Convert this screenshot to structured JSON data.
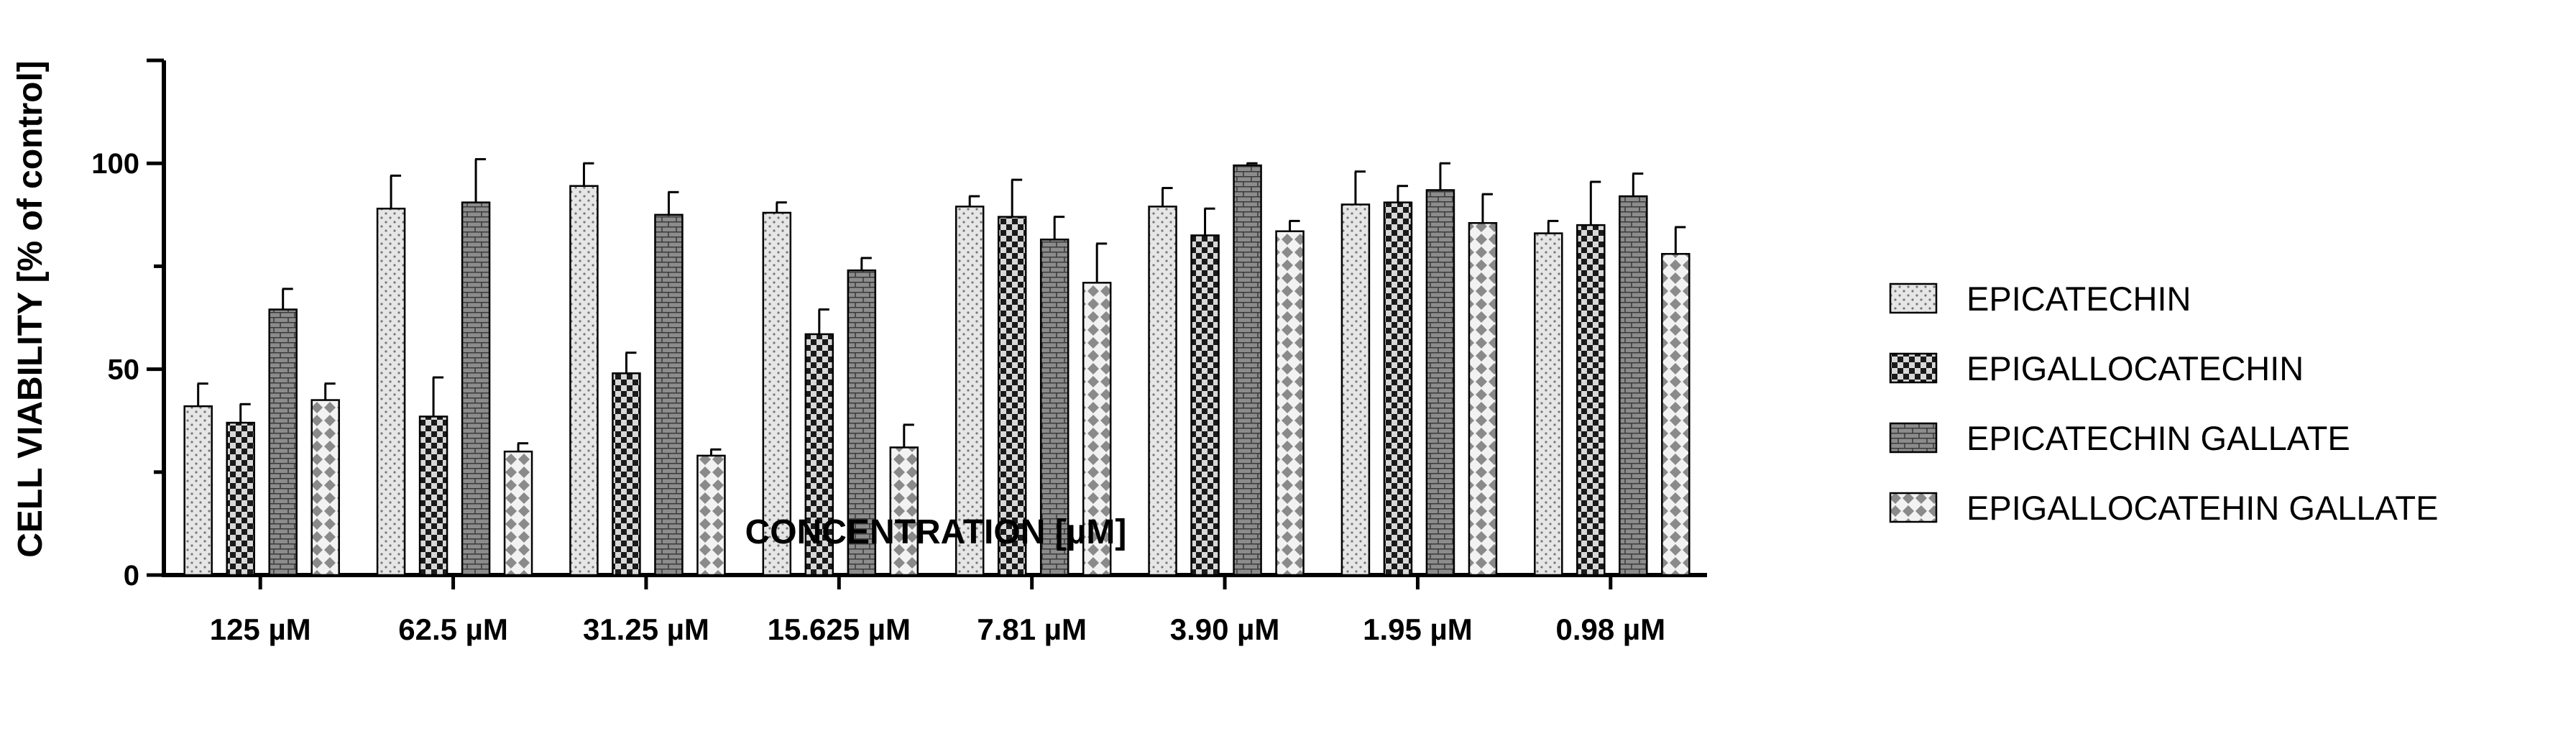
{
  "chart_data": {
    "type": "bar",
    "title": "",
    "xlabel": "CONCENTRATION [µM]",
    "ylabel": "CELL VIABILITY [% of control]",
    "ylim": [
      0,
      125
    ],
    "yticks": [
      0,
      50,
      100
    ],
    "ytick_labels": [
      "0",
      "50",
      "100"
    ],
    "grid": false,
    "legend_position": "right",
    "categories": [
      "125 µM",
      "62.5 µM",
      "31.25 µM",
      "15.625 µM",
      "7.81 µM",
      "3.90 µM",
      "1.95 µM",
      "0.98 µM"
    ],
    "series": [
      {
        "name": "EPICATECHIN",
        "pattern": "dots",
        "values": [
          41,
          89,
          94.5,
          88,
          89.5,
          89.5,
          90,
          83
        ],
        "errors": [
          5.5,
          8,
          5.5,
          2.5,
          2.5,
          4.5,
          8,
          3
        ]
      },
      {
        "name": "EPIGALLOCATECHIN",
        "pattern": "checker",
        "values": [
          37,
          38.5,
          49,
          58.5,
          87,
          82.5,
          90.5,
          85
        ],
        "errors": [
          4.5,
          9.5,
          5,
          6,
          9,
          6.5,
          4,
          10.5
        ]
      },
      {
        "name": "EPICATECHIN GALLATE",
        "pattern": "bricks",
        "values": [
          64.5,
          90.5,
          87.5,
          74,
          81.5,
          99.5,
          93.5,
          92
        ],
        "errors": [
          5,
          10.5,
          5.5,
          3,
          5.5,
          0.5,
          6.5,
          5.5
        ]
      },
      {
        "name": "EPIGALLOCATEHIN GALLATE",
        "pattern": "diamonds",
        "values": [
          42.5,
          30,
          29,
          31,
          71,
          83.5,
          85.5,
          78
        ],
        "errors": [
          4,
          2,
          1.5,
          5.5,
          9.5,
          2.5,
          7,
          6.5
        ]
      }
    ]
  }
}
